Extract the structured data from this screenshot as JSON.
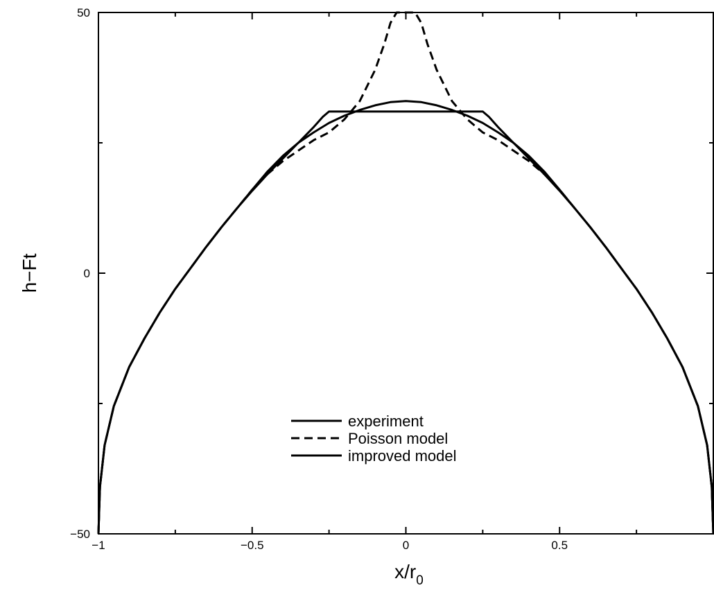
{
  "chart_data": {
    "type": "line",
    "title": "",
    "xlabel": "x/r",
    "xlabel_sub": "0",
    "ylabel": "h−Ft",
    "xlim": [
      -1,
      1
    ],
    "ylim": [
      -50,
      50
    ],
    "x_ticks": [
      {
        "value": -1,
        "label": "−1"
      },
      {
        "value": -0.5,
        "label": "−0.5"
      },
      {
        "value": 0,
        "label": "0"
      },
      {
        "value": 0.5,
        "label": "0.5"
      }
    ],
    "y_ticks": [
      {
        "value": -50,
        "label": "−50"
      },
      {
        "value": 0,
        "label": "0"
      },
      {
        "value": 50,
        "label": "50"
      }
    ],
    "legend_position": "bottom-center",
    "grid": false,
    "series": [
      {
        "name": "experiment",
        "style": "solid",
        "color": "#000000",
        "x": [
          -1,
          -0.995,
          -0.98,
          -0.95,
          -0.9,
          -0.85,
          -0.8,
          -0.75,
          -0.7,
          -0.65,
          -0.6,
          -0.55,
          -0.5,
          -0.45,
          -0.4,
          -0.35,
          -0.3,
          -0.27,
          -0.25,
          0.25,
          0.27,
          0.3,
          0.35,
          0.4,
          0.45,
          0.5,
          0.55,
          0.6,
          0.65,
          0.7,
          0.75,
          0.8,
          0.85,
          0.9,
          0.95,
          0.98,
          0.995,
          1
        ],
        "y": [
          -50,
          -41,
          -33,
          -25.5,
          -18,
          -12.5,
          -7.5,
          -3,
          1,
          5,
          8.8,
          12.4,
          15.8,
          19,
          22,
          25,
          28,
          30,
          31,
          31,
          30,
          28,
          25,
          22,
          19,
          15.8,
          12.4,
          8.8,
          5,
          1,
          -3,
          -7.5,
          -12.5,
          -18,
          -25.5,
          -33,
          -41,
          -50
        ]
      },
      {
        "name": "Poisson model",
        "style": "dashed",
        "color": "#000000",
        "x": [
          -1,
          -0.995,
          -0.98,
          -0.95,
          -0.9,
          -0.85,
          -0.8,
          -0.75,
          -0.7,
          -0.65,
          -0.6,
          -0.55,
          -0.5,
          -0.45,
          -0.4,
          -0.35,
          -0.3,
          -0.25,
          -0.2,
          -0.15,
          -0.1,
          -0.07,
          -0.05,
          -0.03,
          0.03,
          0.05,
          0.07,
          0.1,
          0.15,
          0.2,
          0.25,
          0.3,
          0.35,
          0.4,
          0.45,
          0.5,
          0.55,
          0.6,
          0.65,
          0.7,
          0.75,
          0.8,
          0.85,
          0.9,
          0.95,
          0.98,
          0.995,
          1
        ],
        "y": [
          -50,
          -41,
          -33,
          -25.5,
          -18,
          -12.5,
          -7.5,
          -3,
          1,
          5,
          8.8,
          12.4,
          16,
          19,
          21.5,
          23.5,
          25.5,
          27,
          29.5,
          33,
          39,
          44,
          48,
          50,
          50,
          48,
          44,
          39,
          33,
          29.5,
          27,
          25.5,
          23.5,
          21.5,
          19,
          16,
          12.4,
          8.8,
          5,
          1,
          -3,
          -7.5,
          -12.5,
          -18,
          -25.5,
          -33,
          -41,
          -50
        ]
      },
      {
        "name": "improved model",
        "style": "solid",
        "color": "#000000",
        "x": [
          -1,
          -0.995,
          -0.98,
          -0.95,
          -0.9,
          -0.85,
          -0.8,
          -0.75,
          -0.7,
          -0.65,
          -0.6,
          -0.55,
          -0.5,
          -0.45,
          -0.4,
          -0.35,
          -0.3,
          -0.25,
          -0.2,
          -0.15,
          -0.1,
          -0.05,
          0,
          0.05,
          0.1,
          0.15,
          0.2,
          0.25,
          0.3,
          0.35,
          0.4,
          0.45,
          0.5,
          0.55,
          0.6,
          0.65,
          0.7,
          0.75,
          0.8,
          0.85,
          0.9,
          0.95,
          0.98,
          0.995,
          1
        ],
        "y": [
          -50,
          -41,
          -33,
          -25.5,
          -18,
          -12.5,
          -7.5,
          -3,
          1,
          5,
          8.8,
          12.4,
          16,
          19.5,
          22.5,
          25,
          27,
          28.8,
          30.2,
          31.3,
          32.2,
          32.8,
          33,
          32.8,
          32.2,
          31.3,
          30.2,
          28.8,
          27,
          25,
          22.5,
          19.5,
          16,
          12.4,
          8.8,
          5,
          1,
          -3,
          -7.5,
          -12.5,
          -18,
          -25.5,
          -33,
          -41,
          -50
        ]
      }
    ]
  }
}
